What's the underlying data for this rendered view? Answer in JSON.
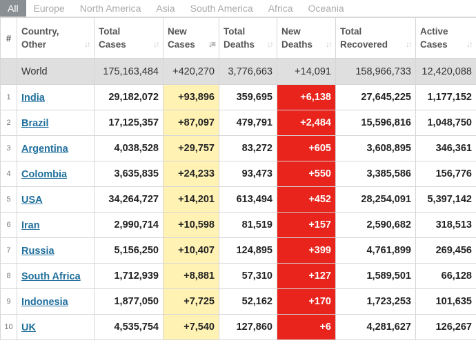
{
  "tabs": [
    "All",
    "Europe",
    "North America",
    "Asia",
    "South America",
    "Africa",
    "Oceania"
  ],
  "headers": {
    "hash": "#",
    "country": [
      "Country,",
      "Other"
    ],
    "total_cases": [
      "Total",
      "Cases"
    ],
    "new_cases": [
      "New",
      "Cases"
    ],
    "total_deaths": [
      "Total",
      "Deaths"
    ],
    "new_deaths": [
      "New",
      "Deaths"
    ],
    "total_recovered": [
      "Total",
      "Recovered"
    ],
    "active_cases": [
      "Active",
      "Cases"
    ]
  },
  "world": {
    "name": "World",
    "total_cases": "175,163,484",
    "new_cases": "+420,270",
    "total_deaths": "3,776,663",
    "new_deaths": "+14,091",
    "total_recovered": "158,966,733",
    "active_cases": "12,420,088"
  },
  "rows": [
    {
      "rank": "1",
      "country": "India",
      "total_cases": "29,182,072",
      "new_cases": "+93,896",
      "total_deaths": "359,695",
      "new_deaths": "+6,138",
      "total_recovered": "27,645,225",
      "active_cases": "1,177,152"
    },
    {
      "rank": "2",
      "country": "Brazil",
      "total_cases": "17,125,357",
      "new_cases": "+87,097",
      "total_deaths": "479,791",
      "new_deaths": "+2,484",
      "total_recovered": "15,596,816",
      "active_cases": "1,048,750"
    },
    {
      "rank": "3",
      "country": "Argentina",
      "total_cases": "4,038,528",
      "new_cases": "+29,757",
      "total_deaths": "83,272",
      "new_deaths": "+605",
      "total_recovered": "3,608,895",
      "active_cases": "346,361"
    },
    {
      "rank": "4",
      "country": "Colombia",
      "total_cases": "3,635,835",
      "new_cases": "+24,233",
      "total_deaths": "93,473",
      "new_deaths": "+550",
      "total_recovered": "3,385,586",
      "active_cases": "156,776"
    },
    {
      "rank": "5",
      "country": "USA",
      "total_cases": "34,264,727",
      "new_cases": "+14,201",
      "total_deaths": "613,494",
      "new_deaths": "+452",
      "total_recovered": "28,254,091",
      "active_cases": "5,397,142"
    },
    {
      "rank": "6",
      "country": "Iran",
      "total_cases": "2,990,714",
      "new_cases": "+10,598",
      "total_deaths": "81,519",
      "new_deaths": "+157",
      "total_recovered": "2,590,682",
      "active_cases": "318,513"
    },
    {
      "rank": "7",
      "country": "Russia",
      "total_cases": "5,156,250",
      "new_cases": "+10,407",
      "total_deaths": "124,895",
      "new_deaths": "+399",
      "total_recovered": "4,761,899",
      "active_cases": "269,456"
    },
    {
      "rank": "8",
      "country": "South Africa",
      "total_cases": "1,712,939",
      "new_cases": "+8,881",
      "total_deaths": "57,310",
      "new_deaths": "+127",
      "total_recovered": "1,589,501",
      "active_cases": "66,128"
    },
    {
      "rank": "9",
      "country": "Indonesia",
      "total_cases": "1,877,050",
      "new_cases": "+7,725",
      "total_deaths": "52,162",
      "new_deaths": "+170",
      "total_recovered": "1,723,253",
      "active_cases": "101,635"
    },
    {
      "rank": "10",
      "country": "UK",
      "total_cases": "4,535,754",
      "new_cases": "+7,540",
      "total_deaths": "127,860",
      "new_deaths": "+6",
      "total_recovered": "4,281,627",
      "active_cases": "126,267"
    }
  ],
  "colors": {
    "new_cases_bg": "#fff2b3",
    "new_deaths_bg": "#e8241c",
    "link": "#1f6f9c",
    "world_row_bg": "#dfdfdf",
    "active_tab_bg": "#8a8f94"
  },
  "icons": {
    "sort": "sort-arrows-icon",
    "sort_active": "sort-desc-icon"
  }
}
